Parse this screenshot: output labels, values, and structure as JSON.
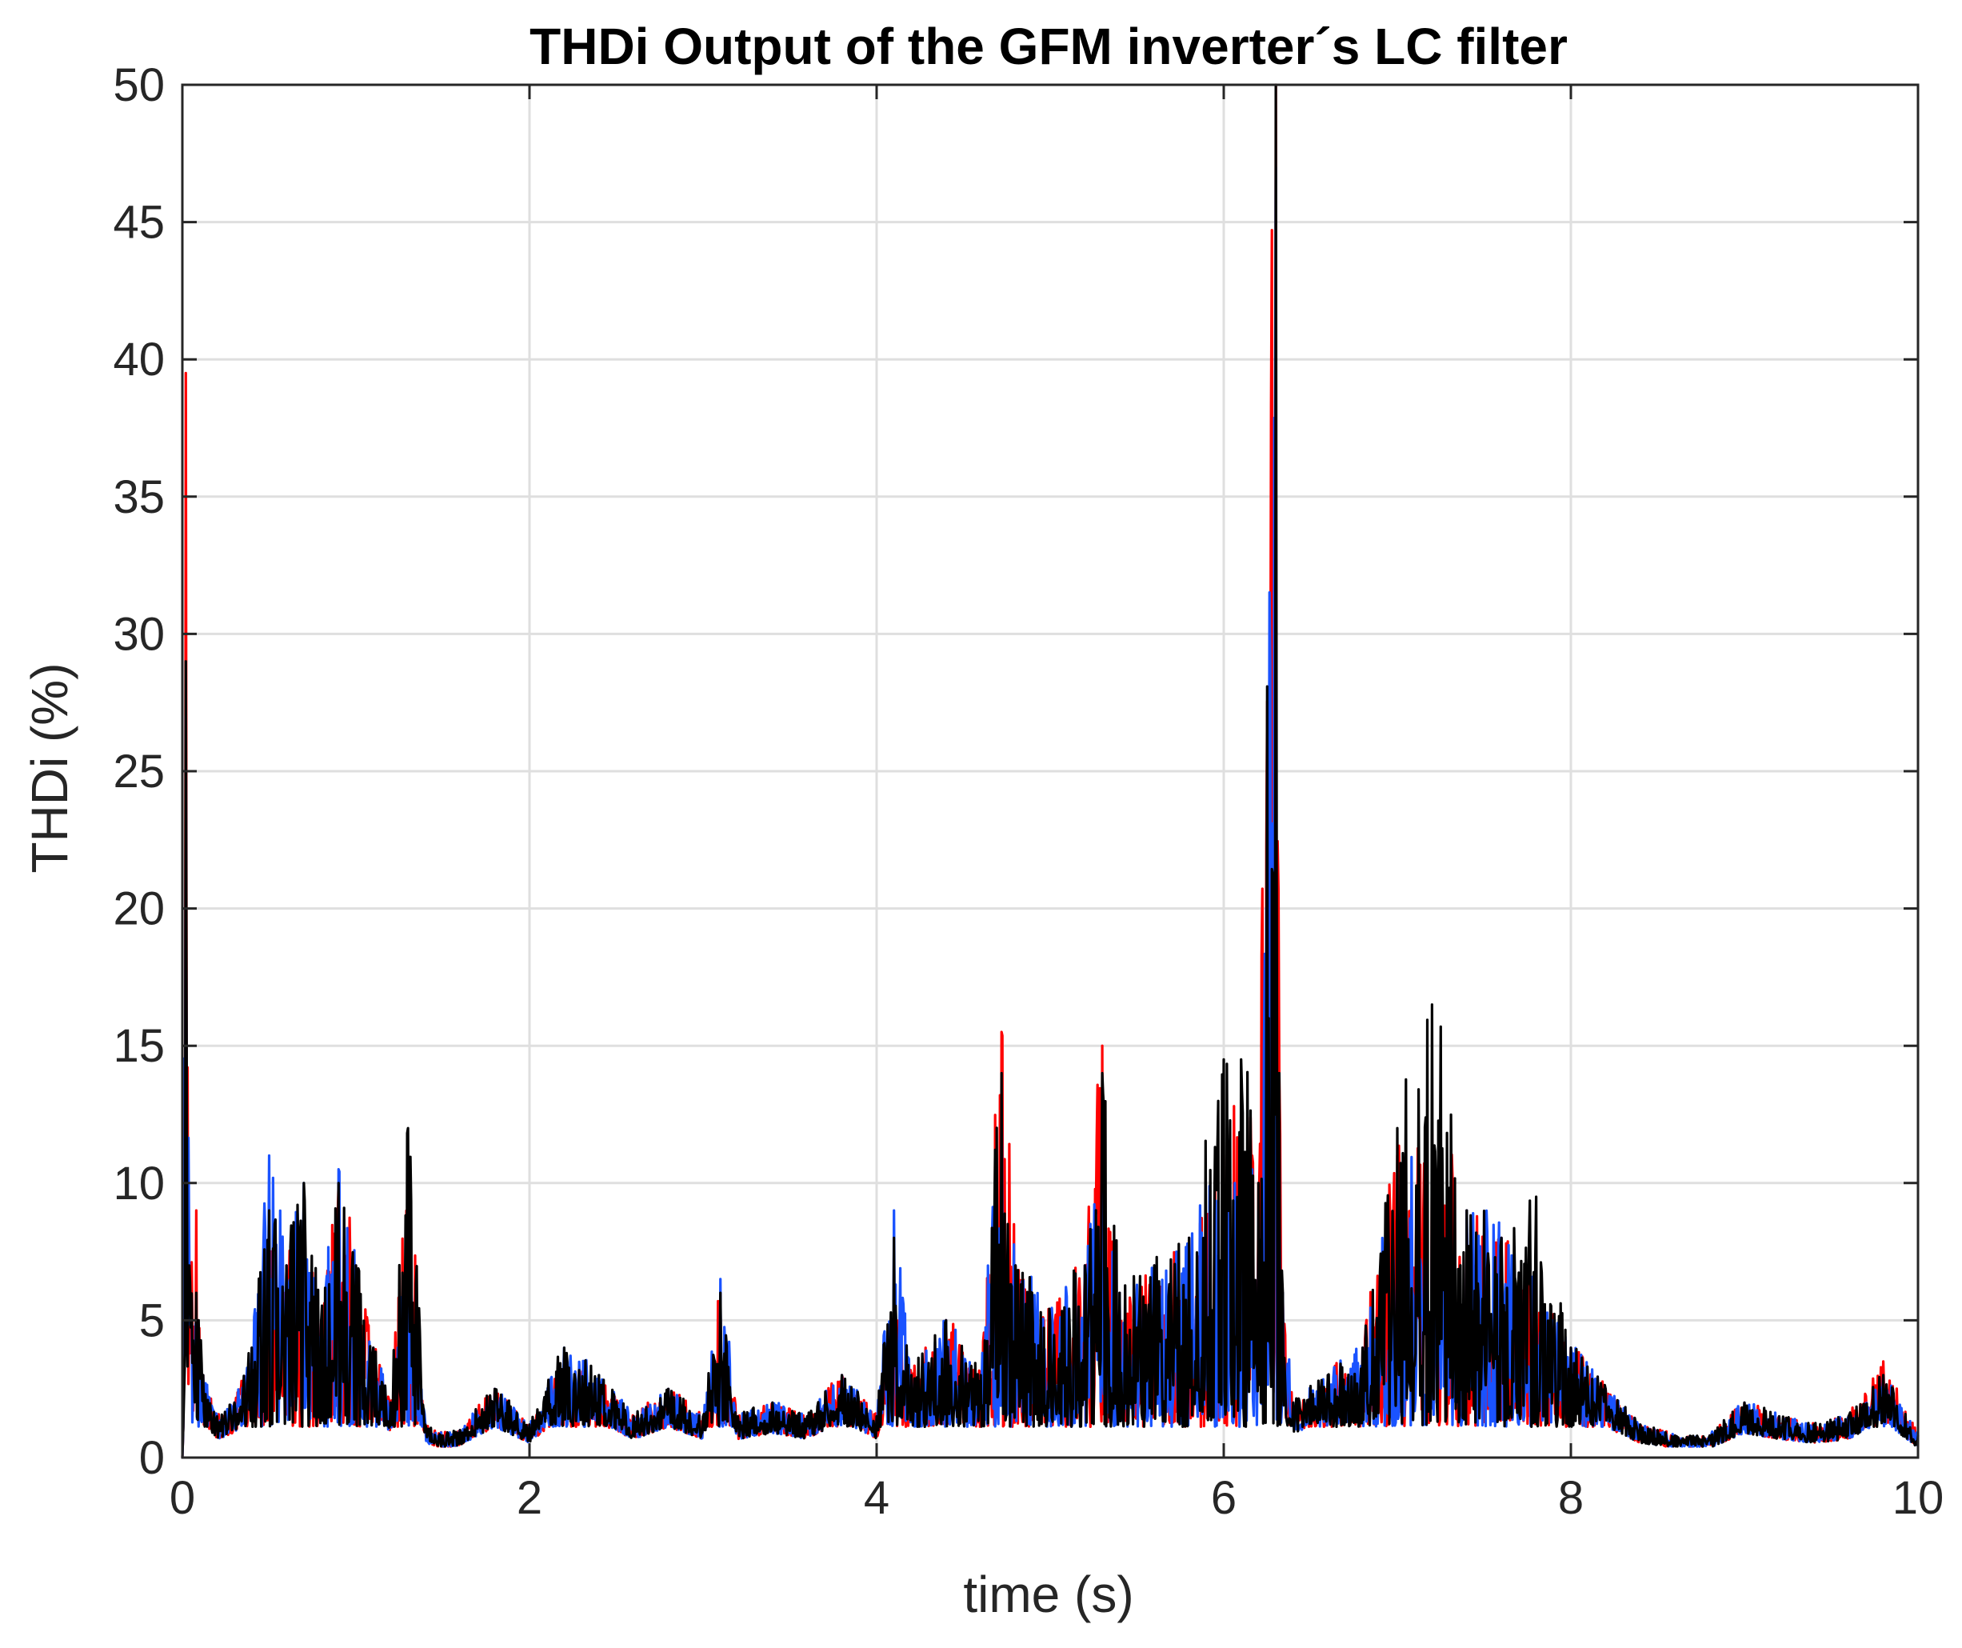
{
  "chart_data": {
    "type": "line",
    "title": "THDi Output of the GFM inverter´s LC filter",
    "xlabel": "time (s)",
    "ylabel": "THDi (%)",
    "xlim": [
      0,
      10
    ],
    "ylim": [
      0,
      50
    ],
    "xticks": [
      0,
      2,
      4,
      6,
      8,
      10
    ],
    "yticks": [
      0,
      5,
      10,
      15,
      20,
      25,
      30,
      35,
      40,
      45,
      50
    ],
    "xtick_labels": [
      "0",
      "2",
      "4",
      "6",
      "8",
      "10"
    ],
    "ytick_labels": [
      "0",
      "5",
      "10",
      "15",
      "20",
      "25",
      "30",
      "35",
      "40",
      "45",
      "50"
    ],
    "grid": true,
    "legend": "none",
    "series": [
      {
        "color": "#ff0000",
        "x": [
          0,
          0.02,
          0.04,
          0.08,
          0.12,
          0.2,
          0.3,
          0.4,
          0.5,
          0.6,
          0.7,
          0.8,
          0.9,
          1.0,
          1.1,
          1.2,
          1.3,
          1.4,
          1.5,
          1.6,
          1.8,
          2.0,
          2.2,
          2.4,
          2.6,
          2.8,
          3.0,
          3.1,
          3.2,
          3.4,
          3.6,
          3.8,
          4.0,
          4.1,
          4.2,
          4.4,
          4.6,
          4.72,
          4.8,
          5.0,
          5.2,
          5.3,
          5.4,
          5.6,
          5.8,
          6.0,
          6.1,
          6.2,
          6.3,
          6.32,
          6.34,
          6.4,
          6.6,
          6.8,
          7.0,
          7.2,
          7.4,
          7.6,
          7.8,
          8.0,
          8.2,
          8.4,
          8.6,
          8.8,
          9.0,
          9.2,
          9.4,
          9.6,
          9.8,
          10.0
        ],
        "y": [
          0,
          39.5,
          7,
          9,
          3,
          1.5,
          2,
          4,
          8,
          7,
          8,
          5,
          10,
          7,
          4,
          2,
          11,
          1.2,
          0.8,
          1.0,
          2.5,
          1.2,
          3.5,
          2.8,
          1.5,
          2.5,
          1.5,
          6,
          1.5,
          2,
          1.5,
          3,
          1.5,
          6,
          3,
          5,
          3,
          15.5,
          7,
          5,
          7,
          15,
          6,
          7,
          8,
          11,
          13,
          10,
          50,
          14,
          6,
          2,
          3,
          4,
          11,
          12,
          9,
          8,
          6,
          4,
          2.5,
          1.2,
          0.8,
          0.8,
          2,
          1.5,
          1.2,
          1.5,
          3.5,
          0.8
        ]
      },
      {
        "color": "#1a53ff",
        "x": [
          0,
          0.02,
          0.04,
          0.08,
          0.12,
          0.2,
          0.3,
          0.4,
          0.5,
          0.6,
          0.7,
          0.8,
          0.9,
          1.0,
          1.1,
          1.2,
          1.3,
          1.4,
          1.5,
          1.6,
          1.8,
          2.0,
          2.2,
          2.4,
          2.6,
          2.8,
          3.0,
          3.1,
          3.2,
          3.4,
          3.6,
          3.8,
          4.0,
          4.1,
          4.2,
          4.4,
          4.6,
          4.72,
          4.8,
          5.0,
          5.2,
          5.3,
          5.4,
          5.6,
          5.8,
          6.0,
          6.1,
          6.2,
          6.3,
          6.32,
          6.34,
          6.4,
          6.6,
          6.8,
          7.0,
          7.2,
          7.4,
          7.6,
          7.8,
          8.0,
          8.2,
          8.4,
          8.6,
          8.8,
          9.0,
          9.2,
          9.4,
          9.6,
          9.8,
          10.0
        ],
        "y": [
          0,
          27,
          7,
          5,
          3,
          1.5,
          2,
          4,
          11,
          7,
          10,
          5,
          10.5,
          7,
          4,
          2,
          9,
          1.2,
          0.8,
          1.0,
          2.5,
          1.2,
          4,
          3,
          1.5,
          2.5,
          1.5,
          6.5,
          1.5,
          2,
          1.5,
          3,
          1.5,
          9,
          3,
          5,
          3,
          13,
          7,
          5,
          7,
          12,
          6,
          7,
          8,
          10,
          12,
          9,
          47,
          12,
          6,
          2,
          3,
          4,
          10,
          11,
          9,
          8,
          6,
          4,
          2.5,
          1.2,
          0.8,
          0.8,
          2,
          1.5,
          1.2,
          1.5,
          3,
          0.8
        ]
      },
      {
        "color": "#000000",
        "x": [
          0,
          0.02,
          0.04,
          0.08,
          0.12,
          0.2,
          0.3,
          0.4,
          0.5,
          0.6,
          0.7,
          0.8,
          0.9,
          1.0,
          1.1,
          1.2,
          1.3,
          1.4,
          1.5,
          1.6,
          1.8,
          2.0,
          2.2,
          2.4,
          2.6,
          2.8,
          3.0,
          3.1,
          3.2,
          3.4,
          3.6,
          3.8,
          4.0,
          4.1,
          4.2,
          4.4,
          4.6,
          4.72,
          4.8,
          5.0,
          5.2,
          5.3,
          5.4,
          5.6,
          5.8,
          6.0,
          6.1,
          6.2,
          6.3,
          6.32,
          6.34,
          6.4,
          6.6,
          6.8,
          7.0,
          7.2,
          7.4,
          7.6,
          7.8,
          8.0,
          8.2,
          8.4,
          8.6,
          8.8,
          9.0,
          9.2,
          9.4,
          9.6,
          9.8,
          10.0
        ],
        "y": [
          0,
          29,
          7,
          6,
          3,
          1.5,
          2,
          4,
          9,
          7,
          10,
          5,
          10,
          7,
          4,
          2,
          12,
          1.2,
          0.8,
          1.0,
          2.5,
          1.2,
          4,
          3,
          1.5,
          2.5,
          1.5,
          6,
          1.5,
          2,
          1.5,
          3,
          1.5,
          8,
          3,
          5,
          3,
          14,
          7,
          5,
          7,
          14,
          6,
          7,
          8,
          14.5,
          14.5,
          10,
          50,
          14,
          6,
          2,
          3,
          4,
          12,
          16.5,
          9,
          8,
          9.5,
          4,
          2.5,
          1.2,
          0.8,
          0.8,
          2,
          1.5,
          1.2,
          1.5,
          3,
          0.8
        ]
      }
    ]
  }
}
